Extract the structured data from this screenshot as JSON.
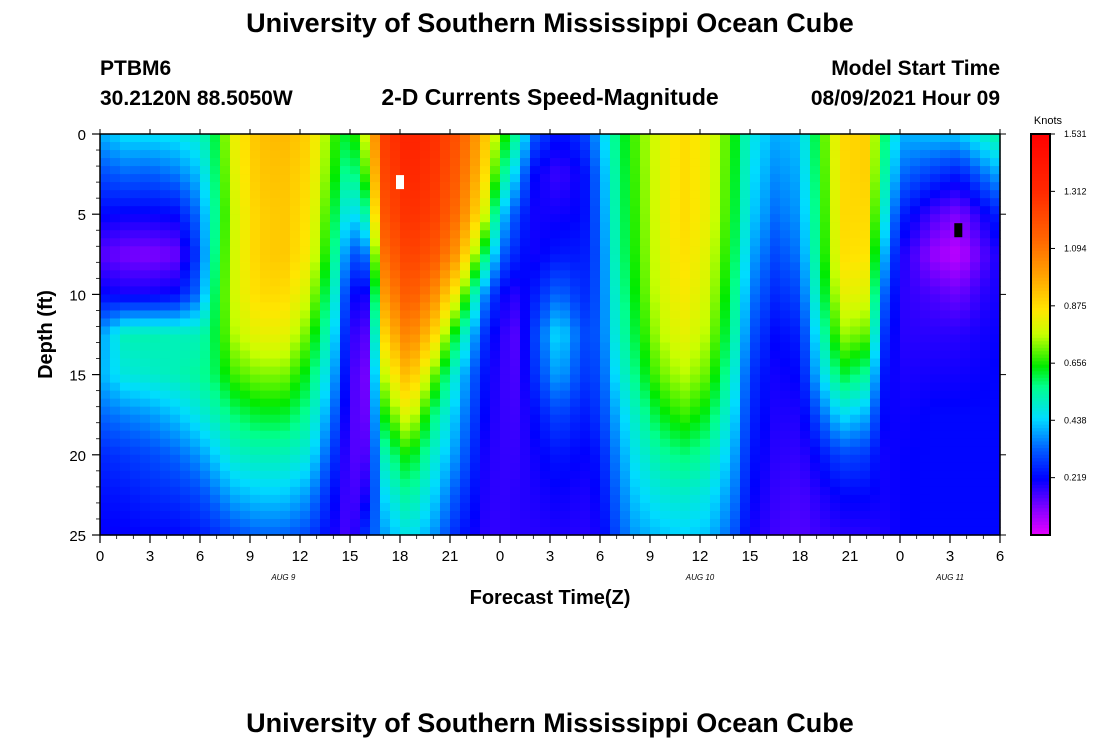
{
  "page": {
    "title_top": "University of Southern Mississippi Ocean Cube",
    "title_bottom": "University of Southern Mississippi Ocean Cube",
    "station_id": "PTBM6",
    "station_coords": "30.2120N  88.5050W",
    "plot_title": "2-D Currents Speed-Magnitude",
    "model_start_label": "Model Start Time",
    "model_start_value": "08/09/2021 Hour 09"
  },
  "chart_data": {
    "type": "heatmap",
    "title": "2-D Currents Speed-Magnitude",
    "xlabel": "Forecast Time(Z)",
    "ylabel": "Depth (ft)",
    "x_tick_labels": [
      "0",
      "3",
      "6",
      "9",
      "12",
      "15",
      "18",
      "21",
      "0",
      "3",
      "6",
      "9",
      "12",
      "15",
      "18",
      "21",
      "0",
      "3",
      "6"
    ],
    "x_hours_since_start": [
      0,
      3,
      6,
      9,
      12,
      15,
      18,
      21,
      24,
      27,
      30,
      33,
      36,
      39,
      42,
      45,
      48,
      51,
      54
    ],
    "xlim": [
      0,
      54
    ],
    "y_ticks": [
      0,
      5,
      10,
      15,
      20,
      25
    ],
    "ylim": [
      0,
      25
    ],
    "date_labels": [
      {
        "text": "AUG  9",
        "hour": 11
      },
      {
        "text": "AUG  10",
        "hour": 36
      },
      {
        "text": "AUG  11",
        "hour": 51
      }
    ],
    "colorbar": {
      "label": "Knots",
      "ticks": [
        "1.531",
        "1.312",
        "1.094",
        "0.875",
        "0.656",
        "0.438",
        "0.219"
      ],
      "range": [
        0,
        1.531
      ]
    },
    "columns": [
      {
        "t": 0,
        "v": [
          0.4,
          0.3,
          0.22,
          0.14,
          0.22,
          0.38,
          0.4,
          0.33,
          0.26,
          0.23,
          0.21
        ]
      },
      {
        "t": 1.5,
        "v": [
          0.45,
          0.33,
          0.21,
          0.11,
          0.2,
          0.52,
          0.48,
          0.36,
          0.28,
          0.24,
          0.21
        ]
      },
      {
        "t": 3,
        "v": [
          0.45,
          0.32,
          0.21,
          0.1,
          0.2,
          0.53,
          0.5,
          0.38,
          0.3,
          0.26,
          0.22
        ]
      },
      {
        "t": 4.5,
        "v": [
          0.46,
          0.35,
          0.22,
          0.12,
          0.22,
          0.52,
          0.52,
          0.42,
          0.33,
          0.27,
          0.22
        ]
      },
      {
        "t": 6,
        "v": [
          0.5,
          0.42,
          0.35,
          0.3,
          0.35,
          0.52,
          0.55,
          0.48,
          0.38,
          0.3,
          0.24
        ]
      },
      {
        "t": 7,
        "v": [
          0.62,
          0.6,
          0.58,
          0.6,
          0.62,
          0.62,
          0.6,
          0.53,
          0.44,
          0.35,
          0.27
        ]
      },
      {
        "t": 8,
        "v": [
          0.82,
          0.8,
          0.78,
          0.78,
          0.78,
          0.75,
          0.68,
          0.58,
          0.5,
          0.4,
          0.3
        ]
      },
      {
        "t": 9.5,
        "v": [
          0.93,
          0.92,
          0.9,
          0.9,
          0.88,
          0.82,
          0.72,
          0.62,
          0.52,
          0.43,
          0.33
        ]
      },
      {
        "t": 11,
        "v": [
          0.95,
          0.93,
          0.92,
          0.92,
          0.88,
          0.82,
          0.72,
          0.62,
          0.52,
          0.43,
          0.33
        ]
      },
      {
        "t": 12.5,
        "v": [
          0.9,
          0.88,
          0.86,
          0.84,
          0.78,
          0.7,
          0.62,
          0.55,
          0.48,
          0.38,
          0.3
        ]
      },
      {
        "t": 14,
        "v": [
          0.68,
          0.66,
          0.62,
          0.58,
          0.52,
          0.46,
          0.4,
          0.34,
          0.28,
          0.23,
          0.2
        ]
      },
      {
        "t": 15,
        "v": [
          0.6,
          0.52,
          0.42,
          0.3,
          0.22,
          0.18,
          0.16,
          0.15,
          0.14,
          0.14,
          0.14
        ]
      },
      {
        "t": 16,
        "v": [
          0.8,
          0.7,
          0.55,
          0.35,
          0.2,
          0.14,
          0.11,
          0.12,
          0.15,
          0.2,
          0.28
        ]
      },
      {
        "t": 17,
        "v": [
          1.25,
          1.22,
          1.18,
          1.1,
          1.0,
          0.88,
          0.76,
          0.64,
          0.52,
          0.44,
          0.38
        ]
      },
      {
        "t": 18.5,
        "v": [
          1.35,
          1.33,
          1.3,
          1.25,
          1.18,
          1.08,
          0.96,
          0.82,
          0.66,
          0.56,
          0.48
        ]
      },
      {
        "t": 20,
        "v": [
          1.3,
          1.28,
          1.25,
          1.18,
          1.05,
          0.9,
          0.72,
          0.58,
          0.5,
          0.44,
          0.38
        ]
      },
      {
        "t": 21.5,
        "v": [
          1.18,
          1.15,
          1.1,
          1.0,
          0.8,
          0.58,
          0.45,
          0.4,
          0.36,
          0.3,
          0.25
        ]
      },
      {
        "t": 23,
        "v": [
          0.95,
          0.9,
          0.82,
          0.62,
          0.38,
          0.28,
          0.24,
          0.22,
          0.2,
          0.19,
          0.18
        ]
      },
      {
        "t": 24,
        "v": [
          0.7,
          0.6,
          0.45,
          0.34,
          0.22,
          0.18,
          0.17,
          0.17,
          0.17,
          0.17,
          0.17
        ]
      },
      {
        "t": 25,
        "v": [
          0.55,
          0.42,
          0.3,
          0.25,
          0.18,
          0.14,
          0.15,
          0.16,
          0.17,
          0.18,
          0.18
        ]
      },
      {
        "t": 26,
        "v": [
          0.32,
          0.22,
          0.2,
          0.2,
          0.24,
          0.28,
          0.26,
          0.22,
          0.2,
          0.19,
          0.18
        ]
      },
      {
        "t": 27.5,
        "v": [
          0.22,
          0.16,
          0.2,
          0.24,
          0.34,
          0.46,
          0.4,
          0.3,
          0.24,
          0.21,
          0.19
        ]
      },
      {
        "t": 29,
        "v": [
          0.28,
          0.22,
          0.22,
          0.24,
          0.26,
          0.3,
          0.28,
          0.24,
          0.21,
          0.19,
          0.18
        ]
      },
      {
        "t": 30,
        "v": [
          0.4,
          0.36,
          0.34,
          0.32,
          0.32,
          0.32,
          0.3,
          0.28,
          0.24,
          0.22,
          0.2
        ]
      },
      {
        "t": 31,
        "v": [
          0.58,
          0.56,
          0.55,
          0.54,
          0.52,
          0.5,
          0.46,
          0.4,
          0.36,
          0.33,
          0.3
        ]
      },
      {
        "t": 32,
        "v": [
          0.68,
          0.67,
          0.66,
          0.65,
          0.63,
          0.6,
          0.56,
          0.5,
          0.46,
          0.42,
          0.38
        ]
      },
      {
        "t": 33.5,
        "v": [
          0.8,
          0.8,
          0.8,
          0.79,
          0.78,
          0.75,
          0.7,
          0.62,
          0.54,
          0.48,
          0.42
        ]
      },
      {
        "t": 35,
        "v": [
          0.88,
          0.88,
          0.88,
          0.87,
          0.85,
          0.82,
          0.76,
          0.68,
          0.58,
          0.5,
          0.44
        ]
      },
      {
        "t": 36.5,
        "v": [
          0.82,
          0.82,
          0.82,
          0.8,
          0.78,
          0.75,
          0.7,
          0.62,
          0.54,
          0.47,
          0.42
        ]
      },
      {
        "t": 38,
        "v": [
          0.65,
          0.64,
          0.63,
          0.61,
          0.58,
          0.55,
          0.5,
          0.45,
          0.4,
          0.36,
          0.32
        ]
      },
      {
        "t": 39,
        "v": [
          0.48,
          0.46,
          0.44,
          0.4,
          0.36,
          0.32,
          0.28,
          0.26,
          0.24,
          0.22,
          0.2
        ]
      },
      {
        "t": 40.5,
        "v": [
          0.4,
          0.37,
          0.34,
          0.3,
          0.26,
          0.22,
          0.2,
          0.19,
          0.18,
          0.17,
          0.16
        ]
      },
      {
        "t": 42,
        "v": [
          0.42,
          0.4,
          0.38,
          0.35,
          0.3,
          0.25,
          0.22,
          0.19,
          0.17,
          0.15,
          0.14
        ]
      },
      {
        "t": 43,
        "v": [
          0.62,
          0.6,
          0.58,
          0.56,
          0.52,
          0.46,
          0.4,
          0.3,
          0.22,
          0.18,
          0.16
        ]
      },
      {
        "t": 44.5,
        "v": [
          0.88,
          0.88,
          0.88,
          0.87,
          0.82,
          0.74,
          0.62,
          0.46,
          0.3,
          0.22,
          0.18
        ]
      },
      {
        "t": 46,
        "v": [
          0.9,
          0.9,
          0.88,
          0.86,
          0.8,
          0.7,
          0.55,
          0.4,
          0.28,
          0.22,
          0.18
        ]
      },
      {
        "t": 47,
        "v": [
          0.6,
          0.56,
          0.5,
          0.42,
          0.34,
          0.28,
          0.24,
          0.22,
          0.2,
          0.2,
          0.19
        ]
      },
      {
        "t": 48,
        "v": [
          0.4,
          0.34,
          0.26,
          0.2,
          0.18,
          0.18,
          0.19,
          0.2,
          0.21,
          0.21,
          0.21
        ]
      },
      {
        "t": 50,
        "v": [
          0.42,
          0.28,
          0.15,
          0.08,
          0.15,
          0.18,
          0.2,
          0.22,
          0.22,
          0.22,
          0.22
        ]
      },
      {
        "t": 51.5,
        "v": [
          0.42,
          0.24,
          0.1,
          0.04,
          0.12,
          0.18,
          0.2,
          0.22,
          0.22,
          0.22,
          0.22
        ]
      },
      {
        "t": 53,
        "v": [
          0.5,
          0.34,
          0.2,
          0.14,
          0.18,
          0.2,
          0.21,
          0.22,
          0.22,
          0.22,
          0.22
        ]
      },
      {
        "t": 54,
        "v": [
          0.55,
          0.4,
          0.26,
          0.2,
          0.2,
          0.21,
          0.22,
          0.22,
          0.22,
          0.22,
          0.22
        ]
      }
    ],
    "depths": [
      0,
      2.5,
      5,
      7.5,
      10,
      12.5,
      15,
      17.5,
      20,
      22.5,
      25
    ],
    "markers": [
      {
        "name": "max-marker",
        "color": "#ffffff",
        "hour": 18,
        "depth": 3
      },
      {
        "name": "min-marker",
        "color": "#000000",
        "hour": 51.5,
        "depth": 6
      }
    ]
  }
}
